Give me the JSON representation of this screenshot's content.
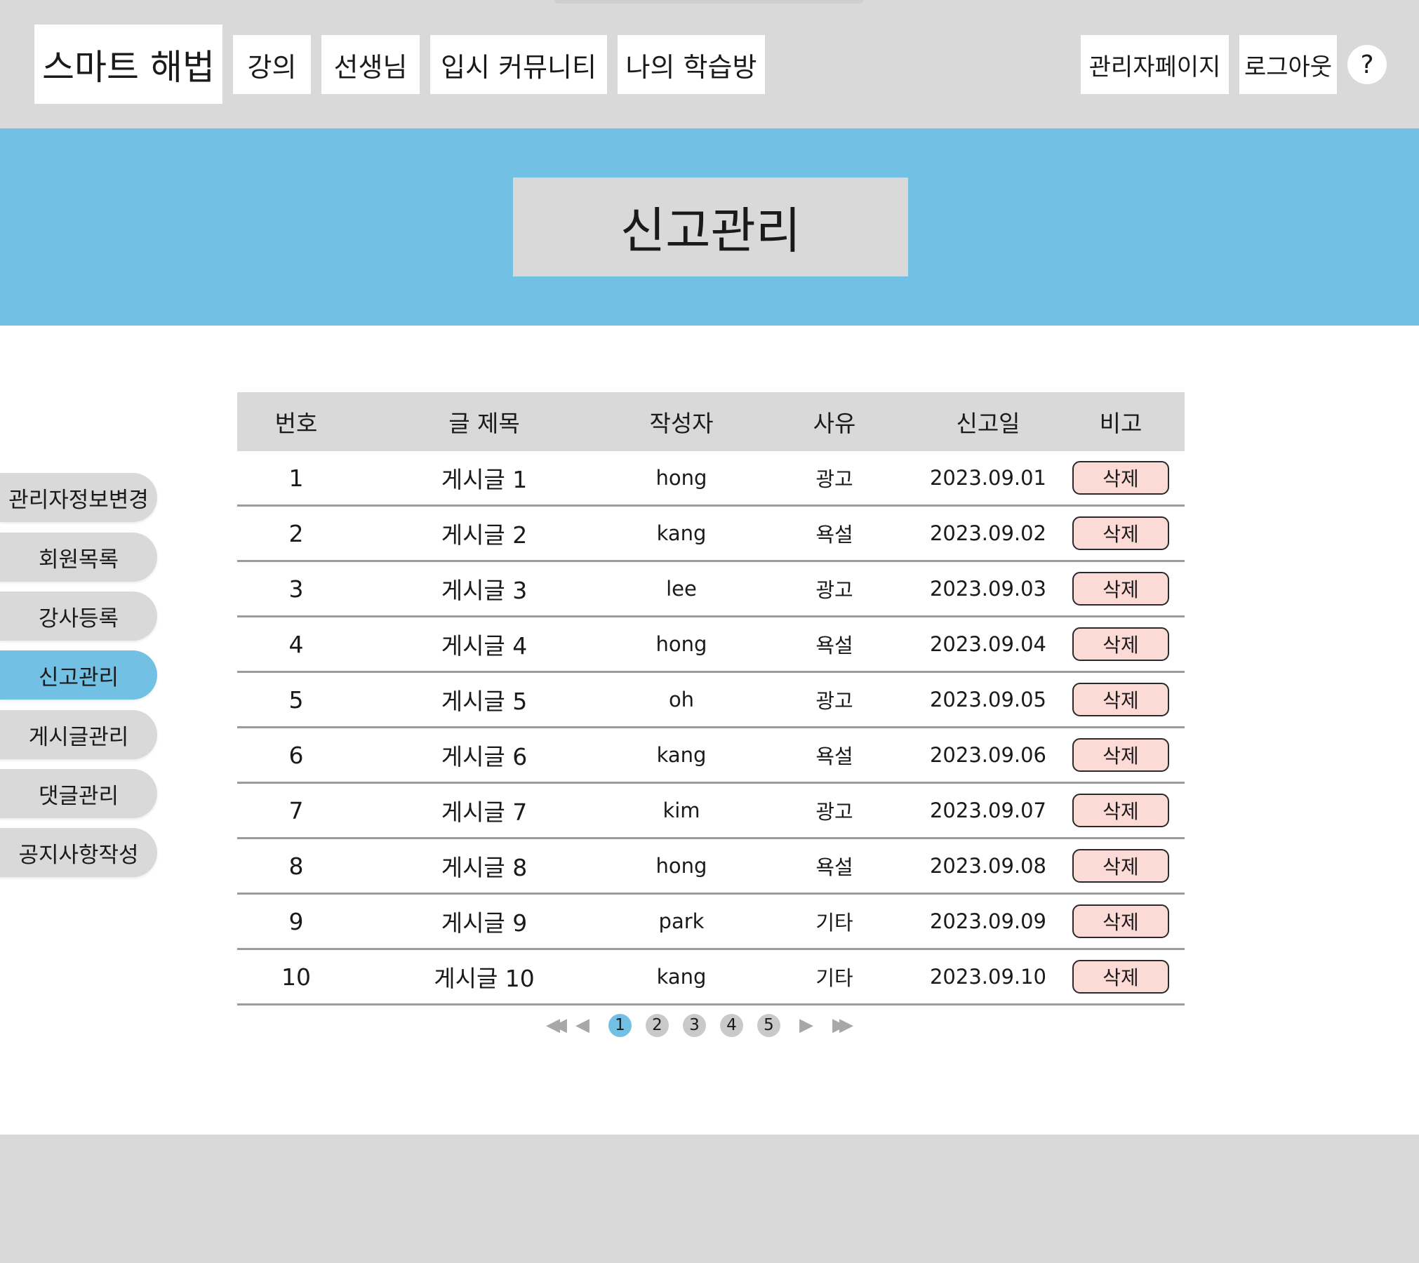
{
  "header": {
    "logo": "스마트 해법",
    "nav": [
      "강의",
      "선생님",
      "입시 커뮤니티",
      "나의 학습방"
    ],
    "admin_label": "관리자페이지",
    "logout_label": "로그아웃",
    "help_label": "?"
  },
  "banner": {
    "title": "신고관리"
  },
  "sidebar": {
    "items": [
      {
        "label": "관리자정보변경"
      },
      {
        "label": "회원목록"
      },
      {
        "label": "강사등록"
      },
      {
        "label": "신고관리"
      },
      {
        "label": "게시글관리"
      },
      {
        "label": "댓글관리"
      },
      {
        "label": "공지사항작성"
      }
    ],
    "active_index": 3
  },
  "table": {
    "headers": [
      "번호",
      "글 제목",
      "작성자",
      "사유",
      "신고일",
      "비고"
    ],
    "delete_label": "삭제",
    "rows": [
      {
        "no": "1",
        "title": "게시글 1",
        "author": "hong",
        "reason": "광고",
        "date": "2023.09.01"
      },
      {
        "no": "2",
        "title": "게시글 2",
        "author": "kang",
        "reason": "욕설",
        "date": "2023.09.02"
      },
      {
        "no": "3",
        "title": "게시글 3",
        "author": "lee",
        "reason": "광고",
        "date": "2023.09.03"
      },
      {
        "no": "4",
        "title": "게시글 4",
        "author": "hong",
        "reason": "욕설",
        "date": "2023.09.04"
      },
      {
        "no": "5",
        "title": "게시글 5",
        "author": "oh",
        "reason": "광고",
        "date": "2023.09.05"
      },
      {
        "no": "6",
        "title": "게시글 6",
        "author": "kang",
        "reason": "욕설",
        "date": "2023.09.06"
      },
      {
        "no": "7",
        "title": "게시글 7",
        "author": "kim",
        "reason": "광고",
        "date": "2023.09.07"
      },
      {
        "no": "8",
        "title": "게시글 8",
        "author": "hong",
        "reason": "욕설",
        "date": "2023.09.08"
      },
      {
        "no": "9",
        "title": "게시글 9",
        "author": "park",
        "reason": "기타",
        "date": "2023.09.09"
      },
      {
        "no": "10",
        "title": "게시글 10",
        "author": "kang",
        "reason": "기타",
        "date": "2023.09.10"
      }
    ]
  },
  "pagination": {
    "pages": [
      "1",
      "2",
      "3",
      "4",
      "5"
    ],
    "current": "1",
    "icons": {
      "first": "double-left-arrow-icon",
      "prev": "left-arrow-icon",
      "next": "right-arrow-icon",
      "last": "double-right-arrow-icon"
    }
  },
  "colors": {
    "accent": "#72c0e3",
    "gray": "#d9d9d9",
    "delete_bg": "#fcdad6"
  }
}
